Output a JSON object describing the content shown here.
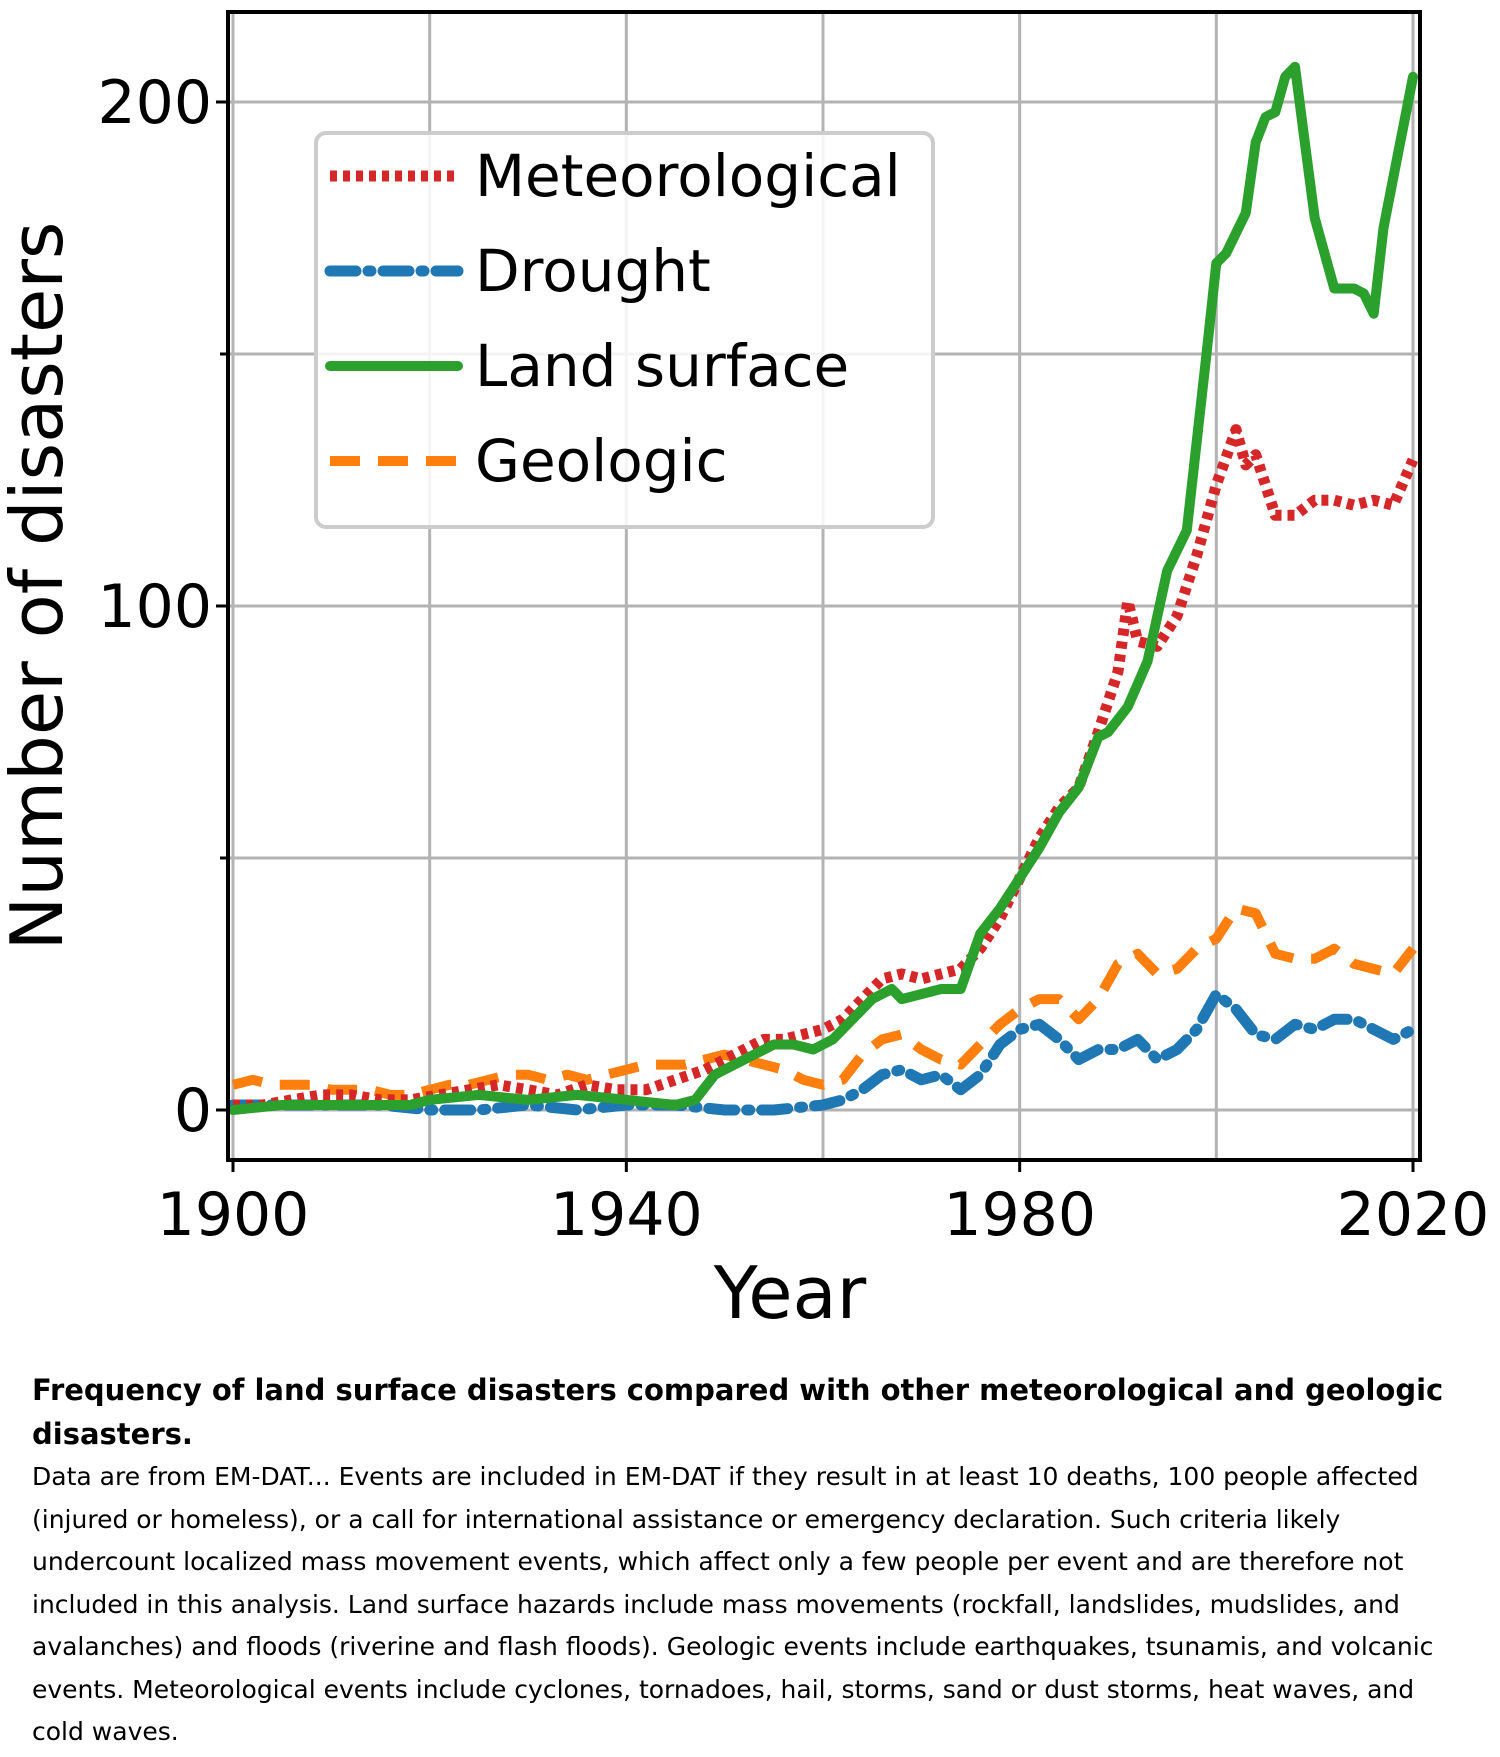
{
  "chart_data": {
    "type": "line",
    "xlabel": "Year",
    "ylabel": "Number of disasters",
    "xlim": [
      1900,
      2020
    ],
    "ylim": [
      -10,
      218
    ],
    "x_ticks": [
      1900,
      1940,
      1980,
      2020
    ],
    "y_ticks": [
      0,
      100,
      200
    ],
    "y_minor_ticks": [
      50,
      150
    ],
    "x_gridlines": [
      1900,
      1920,
      1940,
      1960,
      1980,
      2000,
      2020
    ],
    "grid": true,
    "legend_position": "top-left",
    "series": [
      {
        "name": "Meteorological",
        "color": "#d62728",
        "style": "dotted",
        "points": [
          [
            1900,
            1
          ],
          [
            1903,
            1
          ],
          [
            1906,
            2
          ],
          [
            1909,
            3
          ],
          [
            1912,
            3
          ],
          [
            1915,
            2
          ],
          [
            1918,
            2
          ],
          [
            1921,
            3
          ],
          [
            1924,
            4
          ],
          [
            1927,
            5
          ],
          [
            1930,
            4
          ],
          [
            1933,
            3
          ],
          [
            1936,
            5
          ],
          [
            1939,
            4
          ],
          [
            1942,
            4
          ],
          [
            1945,
            6
          ],
          [
            1948,
            8
          ],
          [
            1950,
            10
          ],
          [
            1952,
            12
          ],
          [
            1954,
            14
          ],
          [
            1956,
            14
          ],
          [
            1958,
            15
          ],
          [
            1960,
            16
          ],
          [
            1962,
            18
          ],
          [
            1964,
            22
          ],
          [
            1966,
            26
          ],
          [
            1968,
            27
          ],
          [
            1970,
            26
          ],
          [
            1972,
            27
          ],
          [
            1974,
            28
          ],
          [
            1976,
            32
          ],
          [
            1978,
            38
          ],
          [
            1980,
            46
          ],
          [
            1982,
            54
          ],
          [
            1984,
            60
          ],
          [
            1986,
            64
          ],
          [
            1988,
            75
          ],
          [
            1990,
            87
          ],
          [
            1991,
            101
          ],
          [
            1992,
            93
          ],
          [
            1994,
            92
          ],
          [
            1996,
            98
          ],
          [
            1998,
            110
          ],
          [
            2000,
            124
          ],
          [
            2002,
            135
          ],
          [
            2003,
            128
          ],
          [
            2004,
            130
          ],
          [
            2006,
            118
          ],
          [
            2008,
            118
          ],
          [
            2010,
            121
          ],
          [
            2012,
            121
          ],
          [
            2014,
            120
          ],
          [
            2016,
            121
          ],
          [
            2018,
            120
          ],
          [
            2020,
            129
          ]
        ]
      },
      {
        "name": "Drought",
        "color": "#1f77b4",
        "style": "dash-dot",
        "points": [
          [
            1900,
            1
          ],
          [
            1905,
            1
          ],
          [
            1910,
            1
          ],
          [
            1915,
            1
          ],
          [
            1920,
            0
          ],
          [
            1925,
            0
          ],
          [
            1930,
            1
          ],
          [
            1935,
            0
          ],
          [
            1940,
            1
          ],
          [
            1945,
            1
          ],
          [
            1950,
            0
          ],
          [
            1955,
            0
          ],
          [
            1960,
            1
          ],
          [
            1962,
            2
          ],
          [
            1964,
            4
          ],
          [
            1966,
            7
          ],
          [
            1968,
            8
          ],
          [
            1970,
            6
          ],
          [
            1972,
            7
          ],
          [
            1974,
            4
          ],
          [
            1976,
            7
          ],
          [
            1978,
            13
          ],
          [
            1980,
            16
          ],
          [
            1982,
            17
          ],
          [
            1984,
            14
          ],
          [
            1986,
            10
          ],
          [
            1988,
            12
          ],
          [
            1990,
            12
          ],
          [
            1992,
            14
          ],
          [
            1994,
            10
          ],
          [
            1996,
            12
          ],
          [
            1998,
            16
          ],
          [
            2000,
            23
          ],
          [
            2002,
            20
          ],
          [
            2004,
            15
          ],
          [
            2006,
            14
          ],
          [
            2008,
            17
          ],
          [
            2010,
            16
          ],
          [
            2012,
            18
          ],
          [
            2014,
            18
          ],
          [
            2016,
            16
          ],
          [
            2018,
            14
          ],
          [
            2020,
            16
          ]
        ]
      },
      {
        "name": "Land surface",
        "color": "#2ca02c",
        "style": "solid",
        "points": [
          [
            1900,
            0
          ],
          [
            1905,
            1
          ],
          [
            1910,
            1
          ],
          [
            1915,
            1
          ],
          [
            1918,
            1
          ],
          [
            1920,
            2
          ],
          [
            1925,
            3
          ],
          [
            1930,
            2
          ],
          [
            1935,
            3
          ],
          [
            1940,
            2
          ],
          [
            1945,
            1
          ],
          [
            1947,
            2
          ],
          [
            1949,
            7
          ],
          [
            1951,
            9
          ],
          [
            1953,
            11
          ],
          [
            1955,
            13
          ],
          [
            1957,
            13
          ],
          [
            1959,
            12
          ],
          [
            1961,
            14
          ],
          [
            1963,
            18
          ],
          [
            1965,
            22
          ],
          [
            1967,
            24
          ],
          [
            1968,
            22
          ],
          [
            1970,
            23
          ],
          [
            1972,
            24
          ],
          [
            1974,
            24
          ],
          [
            1976,
            35
          ],
          [
            1978,
            40
          ],
          [
            1980,
            46
          ],
          [
            1982,
            52
          ],
          [
            1984,
            59
          ],
          [
            1986,
            64
          ],
          [
            1988,
            74
          ],
          [
            1989,
            75
          ],
          [
            1991,
            80
          ],
          [
            1993,
            89
          ],
          [
            1995,
            107
          ],
          [
            1997,
            115
          ],
          [
            1999,
            150
          ],
          [
            2000,
            168
          ],
          [
            2001,
            170
          ],
          [
            2003,
            178
          ],
          [
            2004,
            192
          ],
          [
            2005,
            197
          ],
          [
            2006,
            198
          ],
          [
            2007,
            205
          ],
          [
            2008,
            207
          ],
          [
            2009,
            192
          ],
          [
            2010,
            177
          ],
          [
            2012,
            163
          ],
          [
            2014,
            163
          ],
          [
            2015,
            162
          ],
          [
            2016,
            158
          ],
          [
            2017,
            175
          ],
          [
            2018,
            185
          ],
          [
            2019,
            195
          ],
          [
            2020,
            205
          ]
        ]
      },
      {
        "name": "Geologic",
        "color": "#ff7f0e",
        "style": "dashed",
        "points": [
          [
            1900,
            5
          ],
          [
            1902,
            6
          ],
          [
            1904,
            5
          ],
          [
            1906,
            5
          ],
          [
            1908,
            5
          ],
          [
            1910,
            4
          ],
          [
            1912,
            4
          ],
          [
            1914,
            4
          ],
          [
            1916,
            3
          ],
          [
            1918,
            3
          ],
          [
            1920,
            4
          ],
          [
            1922,
            5
          ],
          [
            1924,
            5
          ],
          [
            1926,
            6
          ],
          [
            1928,
            7
          ],
          [
            1930,
            7
          ],
          [
            1932,
            6
          ],
          [
            1934,
            7
          ],
          [
            1936,
            6
          ],
          [
            1938,
            7
          ],
          [
            1940,
            8
          ],
          [
            1942,
            9
          ],
          [
            1944,
            9
          ],
          [
            1946,
            9
          ],
          [
            1948,
            10
          ],
          [
            1950,
            11
          ],
          [
            1952,
            10
          ],
          [
            1954,
            9
          ],
          [
            1956,
            8
          ],
          [
            1958,
            6
          ],
          [
            1960,
            5
          ],
          [
            1962,
            6
          ],
          [
            1964,
            11
          ],
          [
            1966,
            14
          ],
          [
            1968,
            15
          ],
          [
            1970,
            12
          ],
          [
            1972,
            10
          ],
          [
            1974,
            9
          ],
          [
            1976,
            13
          ],
          [
            1978,
            17
          ],
          [
            1980,
            20
          ],
          [
            1982,
            22
          ],
          [
            1984,
            22
          ],
          [
            1986,
            18
          ],
          [
            1988,
            22
          ],
          [
            1990,
            29
          ],
          [
            1992,
            31
          ],
          [
            1994,
            27
          ],
          [
            1996,
            28
          ],
          [
            1998,
            32
          ],
          [
            2000,
            34
          ],
          [
            2002,
            40
          ],
          [
            2004,
            39
          ],
          [
            2006,
            31
          ],
          [
            2008,
            30
          ],
          [
            2010,
            30
          ],
          [
            2012,
            32
          ],
          [
            2014,
            29
          ],
          [
            2016,
            28
          ],
          [
            2018,
            27
          ],
          [
            2020,
            32
          ]
        ]
      }
    ]
  },
  "caption": {
    "title": "Frequency of land surface disasters compared with other meteorological and geologic disasters.",
    "body": "Data are from EM-DAT... Events are included in EM-DAT if they result in at least 10 deaths, 100 people affected (injured or homeless), or a call for international assistance or emergency declaration. Such criteria likely undercount localized mass movement events, which affect only a few people per event and are therefore not included in this analysis. Land surface hazards include mass movements (rockfall, landslides, mudslides, and avalanches) and floods (riverine and flash floods). Geologic events include earthquakes, tsunamis, and volcanic events. Meteorological events include cyclones, tornadoes, hail, storms, sand or dust storms, heat waves, and cold waves."
  }
}
